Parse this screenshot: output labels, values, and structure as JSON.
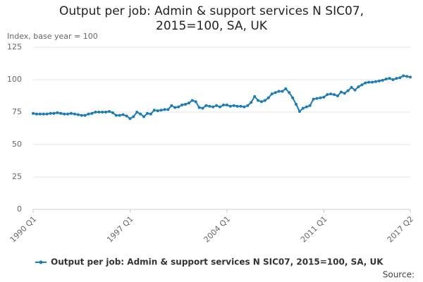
{
  "chart_data": {
    "type": "line",
    "title": "Output per job: Admin & support services N SIC07, 2015=100, SA, UK",
    "y_label": "Index, base year = 100",
    "source": "Source:",
    "categories": [
      "1990 Q1",
      null,
      null,
      null,
      null,
      null,
      null,
      null,
      null,
      null,
      null,
      null,
      null,
      null,
      null,
      null,
      null,
      null,
      null,
      null,
      null,
      null,
      null,
      null,
      null,
      null,
      null,
      null,
      "1997 Q1",
      null,
      null,
      null,
      null,
      null,
      null,
      null,
      null,
      null,
      null,
      null,
      null,
      null,
      null,
      null,
      null,
      null,
      null,
      null,
      null,
      null,
      null,
      null,
      null,
      null,
      null,
      null,
      "2004 Q1",
      null,
      null,
      null,
      null,
      null,
      null,
      null,
      null,
      null,
      null,
      null,
      null,
      null,
      null,
      null,
      null,
      null,
      null,
      null,
      null,
      null,
      null,
      null,
      null,
      null,
      null,
      null,
      "2011 Q1",
      null,
      null,
      null,
      null,
      null,
      null,
      null,
      null,
      null,
      null,
      null,
      null,
      null,
      null,
      null,
      null,
      null,
      null,
      null,
      null,
      null,
      null,
      null,
      null,
      "2017 Q2"
    ],
    "series": [
      {
        "name": "Output per job: Admin & support services N SIC07, 2015=100, SA, UK",
        "color": "#1b7bb5",
        "values": [
          74,
          73.5,
          73.5,
          73.5,
          73.5,
          74,
          74,
          74.5,
          74,
          73.5,
          73.5,
          74,
          73.5,
          73,
          72.5,
          72.5,
          73.5,
          74,
          75,
          75,
          75,
          75,
          75.5,
          74.5,
          72.5,
          72.5,
          73,
          72,
          70,
          71.5,
          75,
          73.5,
          71.5,
          74,
          73.5,
          76.5,
          76,
          76.5,
          77,
          77,
          80,
          78.5,
          79,
          80.5,
          81,
          82,
          84,
          83,
          78.5,
          78,
          80,
          79.5,
          79,
          80,
          79,
          80.5,
          80.5,
          79.5,
          80,
          79.5,
          79.5,
          79,
          80,
          82.5,
          87,
          84,
          83,
          84,
          86,
          89,
          90,
          91,
          91,
          93,
          90,
          86,
          81,
          75.5,
          78,
          79,
          80,
          85,
          85.5,
          86,
          86.5,
          88.5,
          89,
          88.5,
          87.5,
          90.5,
          89.5,
          91.5,
          94,
          92,
          94.5,
          96,
          97.5,
          98,
          98,
          98.5,
          99,
          99.5,
          100.5,
          101,
          100,
          101,
          101.5,
          103,
          102.5,
          102
        ]
      }
    ],
    "ylim": [
      0,
      125
    ],
    "yticks": [
      0,
      25,
      50,
      75,
      100,
      125
    ],
    "grid": true
  }
}
